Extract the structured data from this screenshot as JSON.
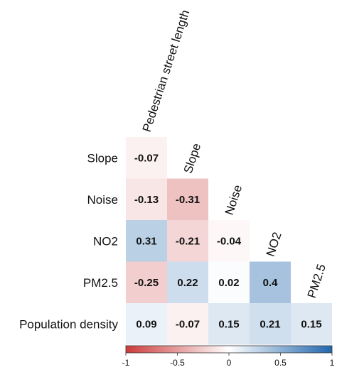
{
  "chart_data": {
    "type": "heatmap",
    "subtype": "lower-triangular correlation matrix",
    "rows": [
      "Slope",
      "Noise",
      "NO2",
      "PM2.5",
      "Population density"
    ],
    "columns": [
      "Pedestrian street length",
      "Slope",
      "Noise",
      "NO2",
      "PM2.5"
    ],
    "cells": [
      {
        "row": "Slope",
        "col": "Pedestrian street length",
        "value": -0.07,
        "label": "-0.07"
      },
      {
        "row": "Noise",
        "col": "Pedestrian street length",
        "value": -0.13,
        "label": "-0.13"
      },
      {
        "row": "Noise",
        "col": "Slope",
        "value": -0.31,
        "label": "-0.31"
      },
      {
        "row": "NO2",
        "col": "Pedestrian street length",
        "value": 0.31,
        "label": "0.31"
      },
      {
        "row": "NO2",
        "col": "Slope",
        "value": -0.21,
        "label": "-0.21"
      },
      {
        "row": "NO2",
        "col": "Noise",
        "value": -0.04,
        "label": "-0.04"
      },
      {
        "row": "PM2.5",
        "col": "Pedestrian street length",
        "value": -0.25,
        "label": "-0.25"
      },
      {
        "row": "PM2.5",
        "col": "Slope",
        "value": 0.22,
        "label": "0.22"
      },
      {
        "row": "PM2.5",
        "col": "Noise",
        "value": 0.02,
        "label": "0.02"
      },
      {
        "row": "PM2.5",
        "col": "NO2",
        "value": 0.4,
        "label": "0.4"
      },
      {
        "row": "Population density",
        "col": "Pedestrian street length",
        "value": 0.09,
        "label": "0.09"
      },
      {
        "row": "Population density",
        "col": "Slope",
        "value": -0.07,
        "label": "-0.07"
      },
      {
        "row": "Population density",
        "col": "Noise",
        "value": 0.15,
        "label": "0.15"
      },
      {
        "row": "Population density",
        "col": "NO2",
        "value": 0.21,
        "label": "0.21"
      },
      {
        "row": "Population density",
        "col": "PM2.5",
        "value": 0.15,
        "label": "0.15"
      }
    ],
    "colorbar": {
      "range": [
        -1,
        1
      ],
      "ticks": [
        -1,
        -0.5,
        0,
        0.5,
        1
      ],
      "tick_labels": [
        "-1",
        "-0.5",
        "0",
        "0.5",
        "1"
      ],
      "negative_color": "#cc3b3b",
      "zero_color": "#ffffff",
      "positive_color": "#2166ac",
      "placement": "bottom"
    },
    "grid": false
  }
}
